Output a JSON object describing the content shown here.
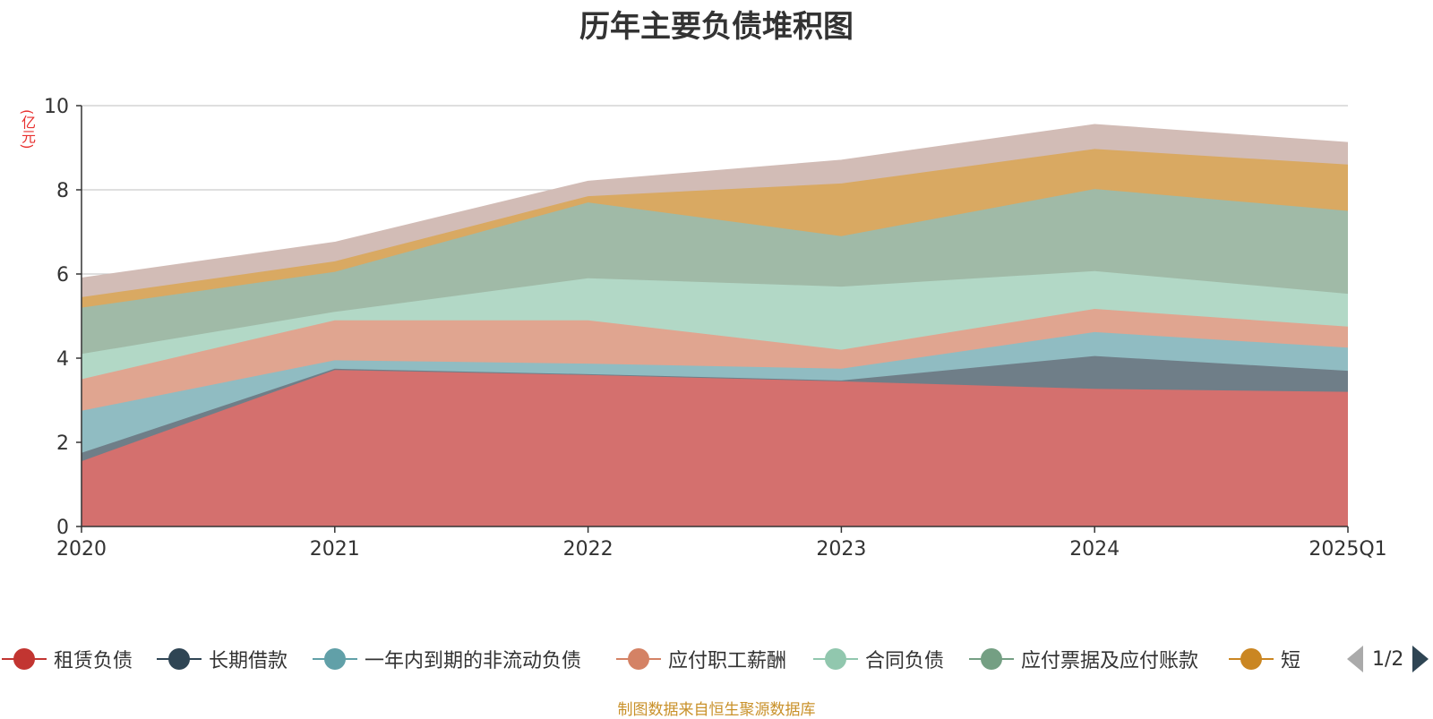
{
  "chart_data": {
    "type": "area",
    "stacked": true,
    "title": "历年主要负债堆积图",
    "ylabel": "(亿元)",
    "categories": [
      "2020",
      "2021",
      "2022",
      "2023",
      "2024",
      "2025Q1"
    ],
    "ylim": [
      0,
      10
    ],
    "yticks": [
      0,
      2,
      4,
      6,
      8,
      10
    ],
    "grid": true,
    "legend_position": "bottom",
    "series": [
      {
        "name": "租赁负债",
        "color": "#c23531",
        "area_color": "#d4706e",
        "values": [
          1.55,
          3.72,
          3.6,
          3.45,
          3.27,
          3.2
        ]
      },
      {
        "name": "长期借款",
        "color": "#2f4554",
        "area_color": "#6f7e88",
        "values": [
          0.2,
          0.03,
          0.02,
          0.02,
          0.78,
          0.5
        ]
      },
      {
        "name": "一年内到期的非流动负债",
        "color": "#61a0a8",
        "area_color": "#90bcc2",
        "values": [
          1.0,
          0.2,
          0.25,
          0.28,
          0.57,
          0.55
        ]
      },
      {
        "name": "应付职工薪酬",
        "color": "#d48265",
        "area_color": "#e0a590",
        "values": [
          0.75,
          0.95,
          1.03,
          0.45,
          0.55,
          0.5
        ]
      },
      {
        "name": "合同负债",
        "color": "#91c7ae",
        "area_color": "#b2d8c6",
        "values": [
          0.6,
          0.2,
          1.0,
          1.5,
          0.9,
          0.78
        ]
      },
      {
        "name": "应付票据及应付账款",
        "color": "#749f83",
        "area_color": "#a0baa7",
        "values": [
          1.1,
          0.95,
          1.8,
          1.2,
          1.95,
          1.97
        ]
      },
      {
        "name": "短",
        "color": "#ca8622",
        "area_color": "#d9a962",
        "values": [
          0.25,
          0.25,
          0.15,
          1.25,
          0.95,
          1.1
        ]
      },
      {
        "name": "",
        "color": "#bda29a",
        "area_color": "#d2bcb6",
        "values": [
          0.45,
          0.45,
          0.35,
          0.55,
          0.58,
          0.52
        ]
      }
    ]
  },
  "legend": {
    "visible_items": [
      "租赁负债",
      "长期借款",
      "一年内到期的非流动负债",
      "应付职工薪酬",
      "合同负债",
      "应付票据及应付账款",
      "短"
    ],
    "pager_text": "1/2"
  },
  "footer": {
    "source_note": "制图数据来自恒生聚源数据库"
  }
}
